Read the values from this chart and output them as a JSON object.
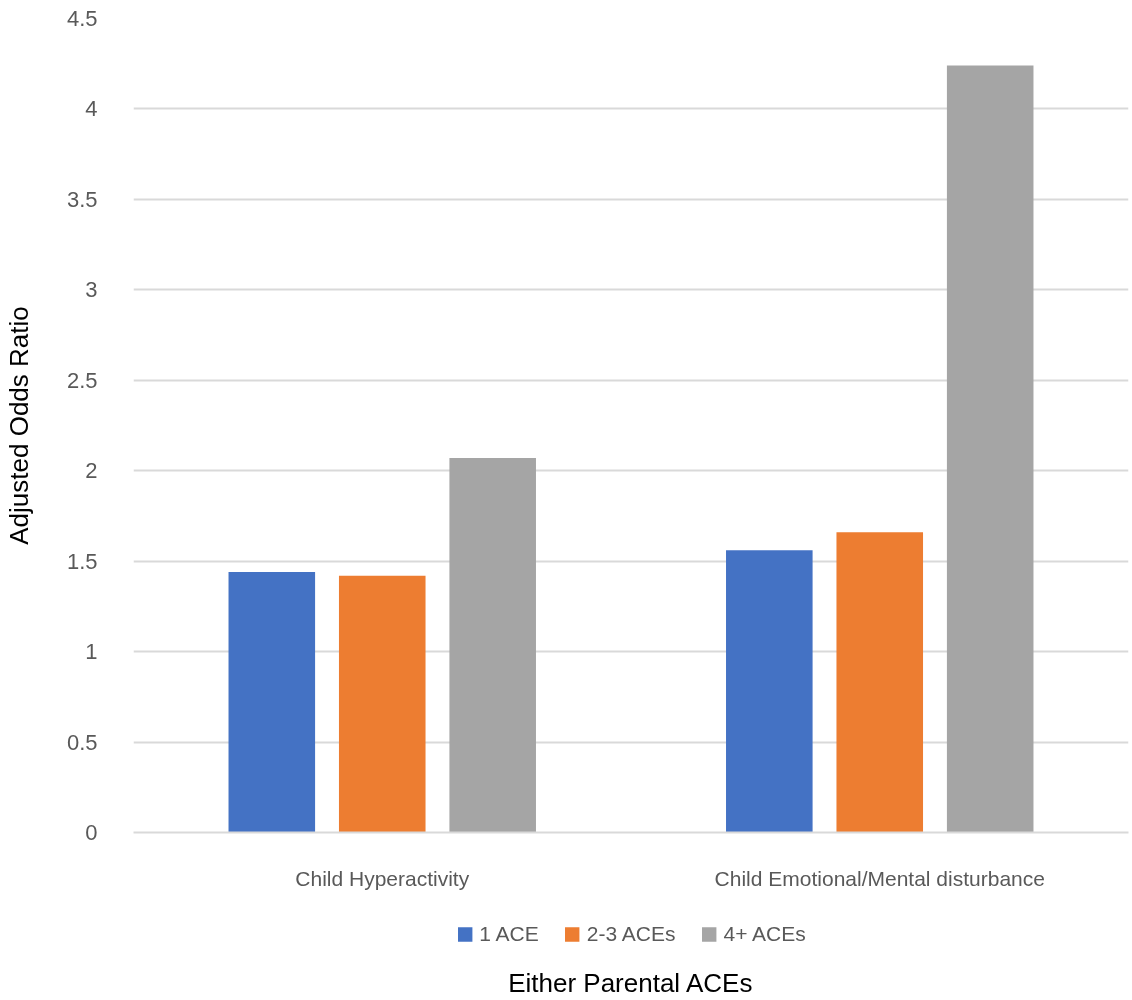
{
  "chart_data": {
    "type": "bar",
    "xlabel": "Either Parental ACEs",
    "ylabel": "Adjusted Odds Ratio",
    "categories": [
      "Child Hyperactivity",
      "Child Emotional/Mental disturbance"
    ],
    "series": [
      {
        "name": "1 ACE",
        "color": "#4472c4",
        "values": [
          1.44,
          1.56
        ]
      },
      {
        "name": "2-3 ACEs",
        "color": "#ed7d31",
        "values": [
          1.42,
          1.66
        ]
      },
      {
        "name": "4+ ACEs",
        "color": "#a5a5a5",
        "values": [
          2.07,
          4.24
        ]
      }
    ],
    "ylim": [
      0,
      4.5
    ],
    "yticks": [
      0,
      0.5,
      1,
      1.5,
      2,
      2.5,
      3,
      3.5,
      4,
      4.5
    ],
    "grid": "y",
    "legend": "bottom"
  }
}
